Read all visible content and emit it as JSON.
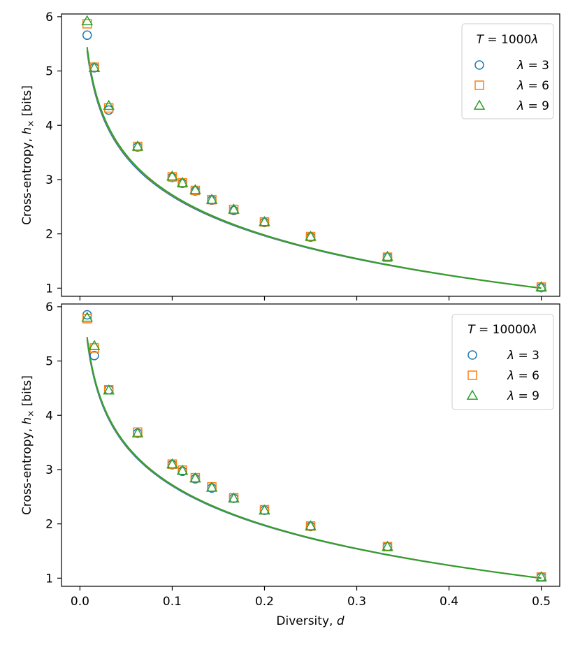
{
  "chart_data": [
    {
      "type": "scatter",
      "legend_title": "T = 1000λ",
      "legend_title_parts": {
        "var": "T",
        "eq": " = 1000",
        "lam": "λ"
      },
      "ylabel": "Cross-entropy, h× [bits]",
      "xlabel": "",
      "xlim": [
        -0.02,
        0.52
      ],
      "ylim": [
        0.85,
        6.05
      ],
      "xticks": [
        0.0,
        0.1,
        0.2,
        0.3,
        0.4,
        0.5
      ],
      "xtick_labels_visible": false,
      "yticks": [
        1,
        2,
        3,
        4,
        5,
        6
      ],
      "ytick_labels": [
        "1",
        "2",
        "3",
        "4",
        "5",
        "6"
      ],
      "legend_position": "top-right",
      "x": [
        0.0078,
        0.0156,
        0.03125,
        0.0625,
        0.1,
        0.1111,
        0.125,
        0.1429,
        0.1667,
        0.2,
        0.25,
        0.3333,
        0.5
      ],
      "series": [
        {
          "name": "λ = 3",
          "lam_value": "3",
          "marker": "circle",
          "color": "#1f77b4",
          "values": [
            5.66,
            5.06,
            4.28,
            3.6,
            3.04,
            2.93,
            2.79,
            2.62,
            2.43,
            2.21,
            1.94,
            1.57,
            1.01
          ],
          "fit_offset": -0.055
        },
        {
          "name": "λ = 6",
          "lam_value": "6",
          "marker": "square",
          "color": "#ff7f0e",
          "values": [
            5.87,
            5.07,
            4.32,
            3.61,
            3.05,
            2.94,
            2.8,
            2.63,
            2.45,
            2.22,
            1.95,
            1.57,
            1.02
          ],
          "fit_offset": -0.015
        },
        {
          "name": "λ = 9",
          "lam_value": "9",
          "marker": "triangle",
          "color": "#2ca02c",
          "values": [
            5.92,
            5.06,
            4.36,
            3.61,
            3.06,
            2.94,
            2.81,
            2.63,
            2.45,
            2.22,
            1.95,
            1.58,
            1.02
          ],
          "fit_offset": 0.0
        }
      ]
    },
    {
      "type": "scatter",
      "legend_title": "T = 10000λ",
      "legend_title_parts": {
        "var": "T",
        "eq": " = 10000",
        "lam": "λ"
      },
      "ylabel": "Cross-entropy, h× [bits]",
      "xlabel": "Diversity, d",
      "xlim": [
        -0.02,
        0.52
      ],
      "ylim": [
        0.85,
        6.05
      ],
      "xticks": [
        0.0,
        0.1,
        0.2,
        0.3,
        0.4,
        0.5
      ],
      "xtick_labels": [
        "0.0",
        "0.1",
        "0.2",
        "0.3",
        "0.4",
        "0.5"
      ],
      "yticks": [
        1,
        2,
        3,
        4,
        5,
        6
      ],
      "ytick_labels": [
        "1",
        "2",
        "3",
        "4",
        "5",
        "6"
      ],
      "legend_position": "top-right",
      "x": [
        0.0078,
        0.0156,
        0.03125,
        0.0625,
        0.1,
        0.1111,
        0.125,
        0.1429,
        0.1667,
        0.2,
        0.25,
        0.3333,
        0.5
      ],
      "series": [
        {
          "name": "λ = 3",
          "lam_value": "3",
          "marker": "circle",
          "color": "#1f77b4",
          "values": [
            5.85,
            5.1,
            4.47,
            3.67,
            3.09,
            2.97,
            2.83,
            2.66,
            2.47,
            2.25,
            1.95,
            1.58,
            1.02
          ],
          "fit_offset": -0.04
        },
        {
          "name": "λ = 6",
          "lam_value": "6",
          "marker": "square",
          "color": "#ff7f0e",
          "values": [
            5.78,
            5.24,
            4.47,
            3.69,
            3.1,
            2.99,
            2.85,
            2.68,
            2.48,
            2.26,
            1.96,
            1.58,
            1.02
          ],
          "fit_offset": -0.01
        },
        {
          "name": "λ = 9",
          "lam_value": "9",
          "marker": "triangle",
          "color": "#2ca02c",
          "values": [
            5.8,
            5.28,
            4.46,
            3.67,
            3.1,
            2.98,
            2.84,
            2.67,
            2.47,
            2.25,
            1.96,
            1.58,
            1.02
          ],
          "fit_offset": 0.0
        }
      ]
    }
  ],
  "labels": {
    "ylabel_main": "Cross-entropy, ",
    "ylabel_var": "h",
    "ylabel_sub": "×",
    "ylabel_unit": " [bits]",
    "xlabel_main": "Diversity, ",
    "xlabel_var": "d"
  }
}
